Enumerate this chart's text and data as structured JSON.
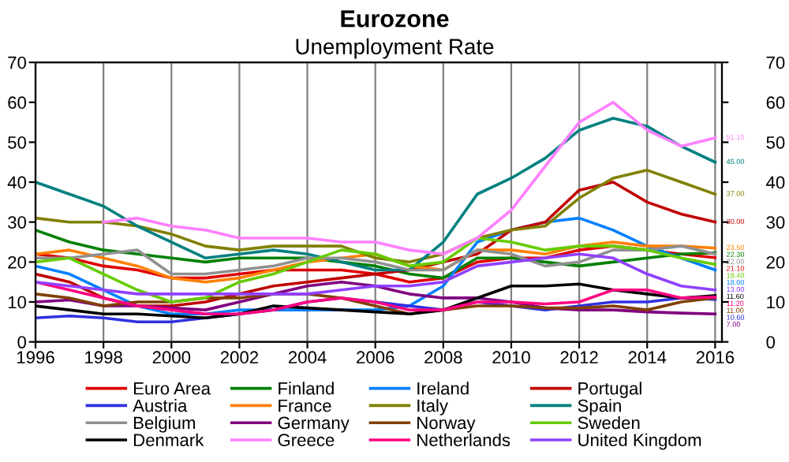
{
  "chart_data": {
    "type": "line",
    "title": "Eurozone",
    "subtitle": "Unemployment Rate",
    "x": [
      1996,
      1997,
      1998,
      1999,
      2000,
      2001,
      2002,
      2003,
      2004,
      2005,
      2006,
      2007,
      2008,
      2009,
      2010,
      2011,
      2012,
      2013,
      2014,
      2015,
      2016
    ],
    "series": [
      {
        "name": "Euro Area",
        "color": "#e00000",
        "values": [
          22,
          21,
          19,
          18,
          16,
          16,
          17,
          18,
          18,
          18,
          17,
          15,
          16,
          20,
          21,
          21,
          23,
          24,
          23,
          22,
          21.1
        ],
        "value_labels": [
          null,
          null,
          null,
          null,
          null,
          null,
          null,
          null,
          null,
          null,
          null,
          null,
          null,
          null,
          null,
          null,
          null,
          null,
          null,
          null,
          "21.10"
        ]
      },
      {
        "name": "Finland",
        "color": "#008000",
        "values": [
          28,
          25,
          23,
          22,
          21,
          20,
          21,
          21,
          21,
          20,
          19,
          17,
          16,
          21,
          21,
          20,
          19,
          20,
          21,
          22,
          22.3
        ],
        "value_labels": [
          null,
          null,
          null,
          null,
          null,
          null,
          null,
          null,
          null,
          null,
          null,
          null,
          null,
          null,
          null,
          null,
          null,
          null,
          null,
          null,
          "22.30"
        ]
      },
      {
        "name": "Ireland",
        "color": "#0080ff",
        "values": [
          19,
          17,
          13,
          9,
          7,
          7,
          8,
          8,
          8,
          8,
          8,
          9,
          14,
          25,
          28,
          30,
          31,
          28,
          24,
          21,
          18
        ],
        "value_labels": [
          null,
          null,
          null,
          null,
          null,
          null,
          null,
          null,
          null,
          null,
          null,
          null,
          null,
          null,
          null,
          null,
          null,
          null,
          null,
          null,
          "18.00"
        ]
      },
      {
        "name": "Portugal",
        "color": "#c00000",
        "values": [
          17,
          15,
          11,
          9,
          9,
          10,
          12,
          14,
          15,
          16,
          17,
          18,
          20,
          22,
          28,
          30,
          38,
          40,
          35,
          32,
          30
        ],
        "value_labels": [
          null,
          null,
          null,
          null,
          null,
          null,
          null,
          null,
          null,
          null,
          null,
          null,
          null,
          null,
          null,
          null,
          null,
          null,
          null,
          null,
          "30.00"
        ]
      },
      {
        "name": "Austria",
        "color": "#3030e0",
        "values": [
          6,
          6.5,
          6,
          5,
          5,
          6,
          7,
          8,
          10,
          11,
          10,
          9,
          8,
          10,
          9,
          8,
          9,
          10,
          10,
          11,
          10.6
        ],
        "value_labels": [
          null,
          null,
          null,
          null,
          null,
          null,
          null,
          null,
          null,
          null,
          null,
          null,
          null,
          null,
          null,
          null,
          null,
          null,
          null,
          null,
          "10.60"
        ]
      },
      {
        "name": "France",
        "color": "#ff8000",
        "values": [
          22,
          23,
          21,
          19,
          16,
          15,
          16,
          18,
          20,
          21,
          22,
          19,
          18,
          23,
          23,
          22,
          24,
          25,
          24,
          24,
          23.5
        ],
        "value_labels": [
          null,
          null,
          null,
          null,
          null,
          null,
          null,
          null,
          null,
          null,
          null,
          null,
          null,
          null,
          null,
          null,
          null,
          null,
          null,
          null,
          "23.50"
        ]
      },
      {
        "name": "Italy",
        "color": "#808000",
        "values": [
          31,
          30,
          30,
          29,
          27,
          24,
          23,
          24,
          24,
          24,
          21,
          20,
          22,
          26,
          28,
          29,
          36,
          41,
          43,
          40,
          37
        ],
        "value_labels": [
          null,
          null,
          null,
          null,
          null,
          null,
          null,
          null,
          null,
          null,
          null,
          null,
          null,
          null,
          null,
          null,
          null,
          null,
          null,
          null,
          "37.00"
        ]
      },
      {
        "name": "Spain",
        "color": "#008080",
        "values": [
          40,
          37,
          34,
          29,
          25,
          21,
          22,
          23,
          22,
          20,
          18,
          18,
          25,
          37,
          41,
          46,
          53,
          56,
          54,
          49,
          45
        ],
        "value_labels": [
          null,
          null,
          null,
          null,
          null,
          null,
          null,
          null,
          null,
          null,
          null,
          null,
          null,
          null,
          null,
          null,
          null,
          null,
          null,
          null,
          "45.00"
        ]
      },
      {
        "name": "Belgium",
        "color": "#909090",
        "values": [
          21,
          21,
          22,
          23,
          17,
          17,
          18,
          19,
          21,
          21,
          20,
          18,
          18,
          23,
          22,
          19,
          20,
          23,
          23,
          24,
          22
        ],
        "value_labels": [
          null,
          null,
          null,
          null,
          null,
          null,
          null,
          null,
          null,
          null,
          null,
          null,
          null,
          null,
          null,
          null,
          null,
          null,
          null,
          null,
          "22.00"
        ]
      },
      {
        "name": "Germany",
        "color": "#800080",
        "values": [
          10,
          10.5,
          9,
          9,
          8.5,
          8,
          10,
          12,
          14,
          15,
          14,
          12,
          11,
          11,
          10,
          8.5,
          8,
          8,
          7.5,
          7.2,
          7
        ],
        "value_labels": [
          null,
          null,
          null,
          null,
          null,
          null,
          null,
          null,
          null,
          null,
          null,
          null,
          null,
          null,
          null,
          null,
          null,
          null,
          null,
          null,
          "7.00"
        ]
      },
      {
        "name": "Norway",
        "color": "#804000",
        "values": [
          12,
          11,
          9,
          10,
          10,
          11,
          11,
          12,
          12,
          11,
          9,
          7,
          8,
          9,
          9,
          8.5,
          8.5,
          9,
          8,
          10,
          11
        ],
        "value_labels": [
          null,
          null,
          null,
          null,
          null,
          null,
          null,
          null,
          null,
          null,
          null,
          null,
          null,
          null,
          null,
          null,
          null,
          null,
          null,
          null,
          "11.00"
        ]
      },
      {
        "name": "Sweden",
        "color": "#66cc00",
        "values": [
          20,
          21,
          17,
          13,
          10,
          11,
          15,
          17,
          20,
          23,
          22,
          19,
          20,
          26,
          25,
          23,
          24,
          24,
          23,
          21,
          19.4
        ],
        "value_labels": [
          null,
          null,
          null,
          null,
          null,
          null,
          null,
          null,
          null,
          null,
          null,
          null,
          null,
          null,
          null,
          null,
          null,
          null,
          null,
          null,
          "19.40"
        ]
      },
      {
        "name": "Denmark",
        "color": "#000000",
        "values": [
          9,
          8,
          7,
          7,
          6.5,
          6,
          7,
          9,
          8.5,
          8,
          7.5,
          7,
          8,
          11,
          14,
          14,
          14.5,
          13,
          12,
          11,
          11.6
        ],
        "value_labels": [
          null,
          null,
          null,
          null,
          null,
          null,
          null,
          null,
          null,
          null,
          null,
          null,
          null,
          null,
          null,
          null,
          null,
          null,
          null,
          null,
          "11.60"
        ]
      },
      {
        "name": "Greece",
        "color": "#ff80ff",
        "values": [
          null,
          null,
          30,
          31,
          29,
          28,
          26,
          26,
          26,
          25,
          25,
          23,
          22,
          26,
          33,
          44,
          55,
          60,
          53,
          49,
          51.1
        ],
        "value_labels": [
          null,
          null,
          null,
          null,
          null,
          null,
          null,
          null,
          null,
          null,
          null,
          null,
          null,
          null,
          null,
          null,
          null,
          null,
          null,
          null,
          "51.10"
        ]
      },
      {
        "name": "Netherlands",
        "color": "#ff0080",
        "values": [
          15,
          13,
          11,
          9,
          8,
          7,
          7,
          8,
          10,
          11,
          10,
          8,
          8,
          10,
          10,
          9.5,
          10,
          13,
          13,
          11,
          11.2
        ],
        "value_labels": [
          null,
          null,
          null,
          null,
          null,
          null,
          null,
          null,
          null,
          null,
          null,
          null,
          null,
          null,
          null,
          null,
          null,
          null,
          null,
          null,
          "11.20"
        ]
      },
      {
        "name": "United Kingdom",
        "color": "#9040ff",
        "values": [
          15,
          14,
          13,
          12,
          12,
          12,
          12,
          12,
          12,
          13,
          14,
          14,
          15,
          19,
          20,
          21,
          22,
          21,
          17,
          14,
          13
        ],
        "value_labels": [
          null,
          null,
          null,
          null,
          null,
          null,
          null,
          null,
          null,
          null,
          null,
          null,
          null,
          null,
          null,
          null,
          null,
          null,
          null,
          null,
          "13.00"
        ]
      }
    ],
    "xlim": [
      1996,
      2016.2
    ],
    "xticks": [
      1996,
      1998,
      2000,
      2002,
      2004,
      2006,
      2008,
      2010,
      2012,
      2014,
      2016
    ],
    "ylim": [
      0,
      70
    ],
    "yticks": [
      0,
      10,
      20,
      30,
      40,
      50,
      60,
      70
    ],
    "y2lim": [
      0,
      70
    ],
    "y2ticks": [
      0,
      10,
      20,
      30,
      40,
      50,
      60,
      70
    ],
    "grid": "x",
    "legend": "bottom",
    "marker": "none",
    "line_style": "solid"
  }
}
